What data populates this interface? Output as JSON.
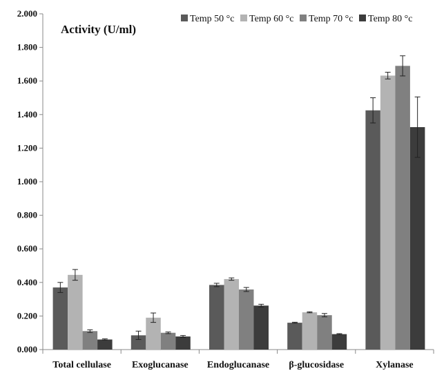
{
  "chart_data": {
    "type": "bar",
    "title": "",
    "annotation": "Activity (U/ml)",
    "xlabel": "",
    "ylabel": "",
    "ylim": [
      0,
      2.0
    ],
    "yticks": [
      "0.000",
      "0.200",
      "0.400",
      "0.600",
      "0.800",
      "1.000",
      "1.200",
      "1.400",
      "1.600",
      "1.800",
      "2.000"
    ],
    "grid": false,
    "legend_position": "top-right",
    "categories": [
      "Total cellulase",
      "Exoglucanase",
      "Endoglucanase",
      "β-glucosidase",
      "Xylanase"
    ],
    "series": [
      {
        "name": "Temp 50 °c",
        "color": "#5a5a5a",
        "values": [
          0.37,
          0.085,
          0.385,
          0.16,
          1.425
        ],
        "errors": [
          0.03,
          0.025,
          0.01,
          0.003,
          0.075
        ]
      },
      {
        "name": "Temp 60 °c",
        "color": "#b3b3b3",
        "values": [
          0.445,
          0.19,
          0.42,
          0.222,
          1.632
        ],
        "errors": [
          0.032,
          0.028,
          0.007,
          0.003,
          0.02
        ]
      },
      {
        "name": "Temp 70 °c",
        "color": "#808080",
        "values": [
          0.11,
          0.1,
          0.358,
          0.205,
          1.69
        ],
        "errors": [
          0.008,
          0.005,
          0.012,
          0.01,
          0.06
        ]
      },
      {
        "name": "Temp 80 °c",
        "color": "#3c3c3c",
        "values": [
          0.06,
          0.078,
          0.262,
          0.092,
          1.325
        ],
        "errors": [
          0.004,
          0.006,
          0.008,
          0.003,
          0.18
        ]
      }
    ]
  }
}
